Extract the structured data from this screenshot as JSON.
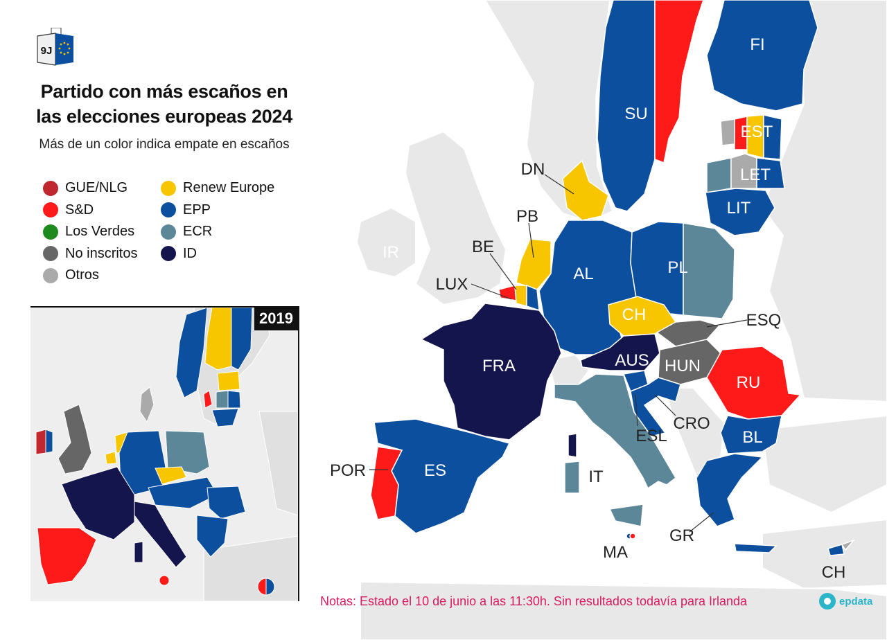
{
  "header": {
    "logo_text": "9J",
    "title_line1": "Partido con más escaños en",
    "title_line2": "las elecciones europeas 2024",
    "subtitle": "Más de un color indica empate en escaños"
  },
  "legend": [
    {
      "label": "GUE/NLG",
      "color": "#c0282f"
    },
    {
      "label": "S&D",
      "color": "#ff1a1a"
    },
    {
      "label": "Los Verdes",
      "color": "#1d8a1d"
    },
    {
      "label": "No inscritos",
      "color": "#666666"
    },
    {
      "label": "Otros",
      "color": "#aaaaaa"
    },
    {
      "label": "Renew Europe",
      "color": "#f7c600"
    },
    {
      "label": "EPP",
      "color": "#0b4f9e"
    },
    {
      "label": "ECR",
      "color": "#5b8799"
    },
    {
      "label": "ID",
      "color": "#15154d"
    }
  ],
  "inset": {
    "year": "2019"
  },
  "map_labels": {
    "fi": "FI",
    "su": "SU",
    "est": "EST",
    "let": "LET",
    "lit": "LIT",
    "dn": "DN",
    "pb": "PB",
    "be": "BE",
    "lux": "LUX",
    "ir": "IR",
    "al": "AL",
    "pl": "PL",
    "ch": "CH",
    "esq": "ESQ",
    "aus": "AUS",
    "hun": "HUN",
    "fra": "FRA",
    "ru": "RU",
    "cro": "CRO",
    "esl": "ESL",
    "bl": "BL",
    "it": "IT",
    "es": "ES",
    "por": "POR",
    "gr": "GR",
    "ma": "MA",
    "ch_cy": "CH"
  },
  "notes": "Notas: Estado el 10 de junio a las 11:30h. Sin resultados todavía para Irlanda",
  "brand": "epdata",
  "colors": {
    "land": "#e8e8e8",
    "border": "#ffffff",
    "gue": "#c0282f",
    "sd": "#ff1a1a",
    "renew": "#f7c600",
    "epp": "#0b4f9e",
    "ecr": "#5b8799",
    "id": "#15154d",
    "ni": "#666666",
    "otros": "#aaaaaa"
  }
}
